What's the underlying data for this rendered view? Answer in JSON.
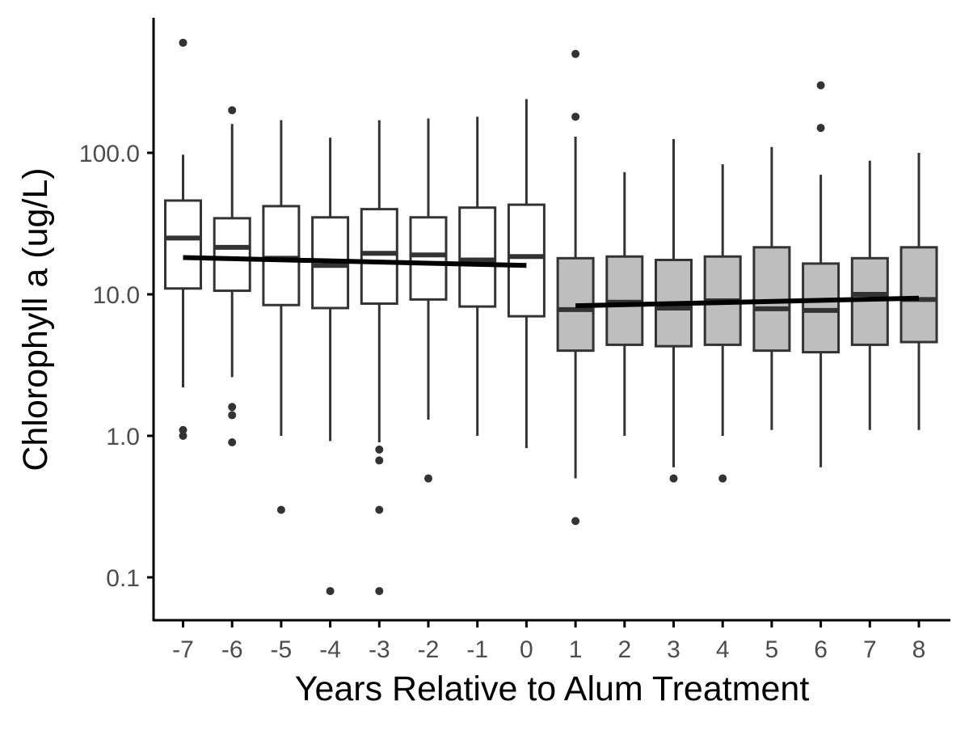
{
  "chart_data": {
    "type": "boxplot",
    "title": "",
    "xlabel": "Years Relative to Alum Treatment",
    "ylabel": "Chlorophyll a (ug/L)",
    "y_scale": "log10",
    "ylim": [
      0.05,
      1000
    ],
    "y_ticks": [
      0.1,
      1,
      10,
      100
    ],
    "y_tick_labels": [
      "0.1",
      "1.0",
      "10.0",
      "100.0"
    ],
    "grid": false,
    "legend": "none",
    "colors": {
      "pre_fill": "#ffffff",
      "post_fill": "#bebebe",
      "box_stroke": "#333333",
      "outlier": "#333333",
      "trend_line": "#000000",
      "axis": "#000000",
      "tick_text": "#4d4d4d"
    },
    "categories": [
      "-7",
      "-6",
      "-5",
      "-4",
      "-3",
      "-2",
      "-1",
      "0",
      "1",
      "2",
      "3",
      "4",
      "5",
      "6",
      "7",
      "8"
    ],
    "boxes": [
      {
        "x": -7,
        "group": "pre",
        "lower_whisker": 2.2,
        "q1": 11.0,
        "median": 25.0,
        "q3": 46.0,
        "upper_whisker": 97.0,
        "outliers": [
          1.0,
          1.1,
          600.0
        ]
      },
      {
        "x": -6,
        "group": "pre",
        "lower_whisker": 2.6,
        "q1": 10.6,
        "median": 21.5,
        "q3": 34.5,
        "upper_whisker": 160.0,
        "outliers": [
          0.9,
          1.4,
          1.6,
          200.0
        ]
      },
      {
        "x": -5,
        "group": "pre",
        "lower_whisker": 1.0,
        "q1": 8.4,
        "median": 18.0,
        "q3": 42.0,
        "upper_whisker": 170.0,
        "outliers": [
          0.3
        ]
      },
      {
        "x": -4,
        "group": "pre",
        "lower_whisker": 0.92,
        "q1": 8.0,
        "median": 16.0,
        "q3": 35.0,
        "upper_whisker": 128.0,
        "outliers": [
          0.08
        ]
      },
      {
        "x": -3,
        "group": "pre",
        "lower_whisker": 0.9,
        "q1": 8.6,
        "median": 19.5,
        "q3": 40.0,
        "upper_whisker": 170.0,
        "outliers": [
          0.08,
          0.3,
          0.67,
          0.8
        ]
      },
      {
        "x": -2,
        "group": "pre",
        "lower_whisker": 1.3,
        "q1": 9.2,
        "median": 19.0,
        "q3": 35.0,
        "upper_whisker": 175.0,
        "outliers": [
          0.5
        ]
      },
      {
        "x": -1,
        "group": "pre",
        "lower_whisker": 1.0,
        "q1": 8.2,
        "median": 17.5,
        "q3": 41.0,
        "upper_whisker": 180.0,
        "outliers": []
      },
      {
        "x": 0,
        "group": "pre",
        "lower_whisker": 0.82,
        "q1": 7.0,
        "median": 18.5,
        "q3": 43.0,
        "upper_whisker": 240.0,
        "outliers": []
      },
      {
        "x": 1,
        "group": "post",
        "lower_whisker": 0.5,
        "q1": 4.0,
        "median": 7.8,
        "q3": 18.0,
        "upper_whisker": 130.0,
        "outliers": [
          0.25,
          180.0,
          500.0
        ]
      },
      {
        "x": 2,
        "group": "post",
        "lower_whisker": 1.0,
        "q1": 4.4,
        "median": 8.8,
        "q3": 18.5,
        "upper_whisker": 73.0,
        "outliers": []
      },
      {
        "x": 3,
        "group": "post",
        "lower_whisker": 0.6,
        "q1": 4.3,
        "median": 8.0,
        "q3": 17.5,
        "upper_whisker": 125.0,
        "outliers": [
          0.5
        ]
      },
      {
        "x": 4,
        "group": "post",
        "lower_whisker": 1.0,
        "q1": 4.4,
        "median": 9.0,
        "q3": 18.5,
        "upper_whisker": 83.0,
        "outliers": [
          0.5
        ]
      },
      {
        "x": 5,
        "group": "post",
        "lower_whisker": 1.1,
        "q1": 4.0,
        "median": 7.9,
        "q3": 21.5,
        "upper_whisker": 110.0,
        "outliers": []
      },
      {
        "x": 6,
        "group": "post",
        "lower_whisker": 0.6,
        "q1": 3.9,
        "median": 7.7,
        "q3": 16.5,
        "upper_whisker": 70.0,
        "outliers": [
          150.0,
          300.0
        ]
      },
      {
        "x": 7,
        "group": "post",
        "lower_whisker": 1.1,
        "q1": 4.4,
        "median": 10.0,
        "q3": 18.0,
        "upper_whisker": 88.0,
        "outliers": []
      },
      {
        "x": 8,
        "group": "post",
        "lower_whisker": 1.1,
        "q1": 4.6,
        "median": 9.2,
        "q3": 21.5,
        "upper_whisker": 100.0,
        "outliers": []
      }
    ],
    "trend_lines": [
      {
        "group": "pre",
        "x": [
          -7,
          0
        ],
        "y": [
          18.2,
          16.0
        ]
      },
      {
        "group": "post",
        "x": [
          1,
          8
        ],
        "y": [
          8.3,
          9.4
        ]
      }
    ]
  }
}
